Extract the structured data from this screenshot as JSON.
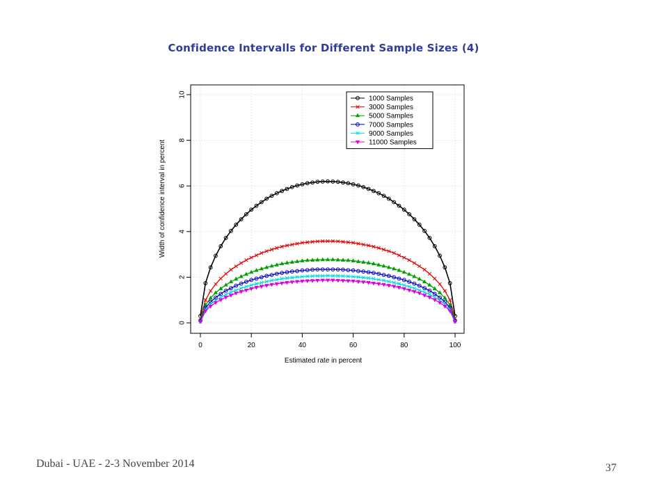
{
  "slide": {
    "title": "Confidence Intervalls for Different Sample Sizes (4)",
    "footer_left": "Dubai - UAE - 2-3 November 2014",
    "page_number": "37"
  },
  "chart_data": {
    "type": "line",
    "title": "",
    "xlabel": "Estimated rate in percent",
    "ylabel": "Width of confidence interval in percent",
    "xlim": [
      0,
      100
    ],
    "ylim": [
      0,
      10
    ],
    "x_ticks": [
      "0",
      "20",
      "40",
      "60",
      "80",
      "100"
    ],
    "y_ticks": [
      "0",
      "2",
      "4",
      "6",
      "8",
      "10"
    ],
    "grid": true,
    "legend_position": "top-right",
    "x": [
      0,
      2,
      4,
      6,
      8,
      10,
      12,
      14,
      16,
      18,
      20,
      22,
      24,
      26,
      28,
      30,
      32,
      34,
      36,
      38,
      40,
      42,
      44,
      46,
      48,
      50,
      52,
      54,
      56,
      58,
      60,
      62,
      64,
      66,
      68,
      70,
      72,
      74,
      76,
      78,
      80,
      82,
      84,
      86,
      88,
      90,
      92,
      94,
      96,
      98,
      100
    ],
    "series": [
      {
        "name": "1000 Samples",
        "n": 1000,
        "marker": "circle",
        "color": "#000000",
        "values": [
          0.3,
          1.74,
          2.43,
          2.94,
          3.36,
          3.72,
          4.03,
          4.3,
          4.54,
          4.76,
          4.96,
          5.13,
          5.29,
          5.44,
          5.57,
          5.68,
          5.78,
          5.87,
          5.95,
          6.02,
          6.07,
          6.12,
          6.15,
          6.18,
          6.19,
          6.2,
          6.19,
          6.18,
          6.15,
          6.12,
          6.07,
          6.02,
          5.95,
          5.87,
          5.78,
          5.68,
          5.57,
          5.44,
          5.29,
          5.13,
          4.96,
          4.76,
          4.54,
          4.3,
          4.03,
          3.72,
          3.36,
          2.94,
          2.43,
          1.74,
          0.3
        ]
      },
      {
        "name": "3000 Samples",
        "n": 3000,
        "marker": "x",
        "color": "#e00000",
        "values": [
          0.2,
          1.0,
          1.4,
          1.7,
          1.94,
          2.15,
          2.33,
          2.48,
          2.62,
          2.75,
          2.86,
          2.96,
          3.06,
          3.14,
          3.21,
          3.28,
          3.34,
          3.39,
          3.43,
          3.47,
          3.51,
          3.53,
          3.55,
          3.57,
          3.58,
          3.58,
          3.58,
          3.57,
          3.55,
          3.53,
          3.51,
          3.47,
          3.43,
          3.39,
          3.34,
          3.28,
          3.21,
          3.14,
          3.06,
          2.96,
          2.86,
          2.75,
          2.62,
          2.48,
          2.33,
          2.15,
          1.94,
          1.7,
          1.4,
          1.0,
          0.2
        ]
      },
      {
        "name": "5000 Samples",
        "n": 5000,
        "marker": "triangle",
        "color": "#00a000",
        "values": [
          0.15,
          0.78,
          1.09,
          1.32,
          1.5,
          1.66,
          1.8,
          1.92,
          2.03,
          2.13,
          2.22,
          2.3,
          2.37,
          2.43,
          2.49,
          2.54,
          2.59,
          2.63,
          2.66,
          2.69,
          2.72,
          2.74,
          2.75,
          2.76,
          2.77,
          2.77,
          2.77,
          2.76,
          2.75,
          2.74,
          2.72,
          2.69,
          2.66,
          2.63,
          2.59,
          2.54,
          2.49,
          2.43,
          2.37,
          2.3,
          2.22,
          2.13,
          2.03,
          1.92,
          1.8,
          1.66,
          1.5,
          1.32,
          1.09,
          0.78,
          0.15
        ]
      },
      {
        "name": "7000 Samples",
        "n": 7000,
        "marker": "circle",
        "color": "#0000cc",
        "values": [
          0.1,
          0.66,
          0.92,
          1.11,
          1.27,
          1.41,
          1.52,
          1.63,
          1.72,
          1.8,
          1.88,
          1.94,
          2.0,
          2.06,
          2.1,
          2.15,
          2.19,
          2.22,
          2.25,
          2.27,
          2.3,
          2.31,
          2.33,
          2.34,
          2.34,
          2.34,
          2.34,
          2.34,
          2.33,
          2.31,
          2.3,
          2.27,
          2.25,
          2.22,
          2.19,
          2.15,
          2.1,
          2.06,
          2.0,
          1.94,
          1.88,
          1.8,
          1.72,
          1.63,
          1.52,
          1.41,
          1.27,
          1.11,
          0.92,
          0.66,
          0.1
        ]
      },
      {
        "name": "9000 Samples",
        "n": 9000,
        "marker": "x",
        "color": "#00d8e0",
        "values": [
          0.05,
          0.58,
          0.81,
          0.98,
          1.12,
          1.24,
          1.34,
          1.43,
          1.51,
          1.59,
          1.65,
          1.71,
          1.76,
          1.81,
          1.86,
          1.89,
          1.93,
          1.96,
          1.98,
          2.01,
          2.02,
          2.04,
          2.05,
          2.06,
          2.06,
          2.07,
          2.06,
          2.06,
          2.05,
          2.04,
          2.02,
          2.01,
          1.98,
          1.96,
          1.93,
          1.89,
          1.86,
          1.81,
          1.76,
          1.71,
          1.65,
          1.59,
          1.51,
          1.43,
          1.34,
          1.24,
          1.12,
          0.98,
          0.81,
          0.58,
          0.05
        ]
      },
      {
        "name": "11000 Samples",
        "n": 11000,
        "marker": "triangle-down",
        "color": "#e000e0",
        "values": [
          0.05,
          0.52,
          0.73,
          0.89,
          1.01,
          1.12,
          1.21,
          1.3,
          1.37,
          1.43,
          1.5,
          1.55,
          1.6,
          1.64,
          1.68,
          1.71,
          1.74,
          1.77,
          1.79,
          1.81,
          1.83,
          1.84,
          1.85,
          1.86,
          1.87,
          1.87,
          1.87,
          1.86,
          1.85,
          1.84,
          1.83,
          1.81,
          1.79,
          1.77,
          1.74,
          1.71,
          1.68,
          1.64,
          1.6,
          1.55,
          1.5,
          1.43,
          1.37,
          1.3,
          1.21,
          1.12,
          1.01,
          0.89,
          0.73,
          0.52,
          0.05
        ]
      }
    ]
  }
}
